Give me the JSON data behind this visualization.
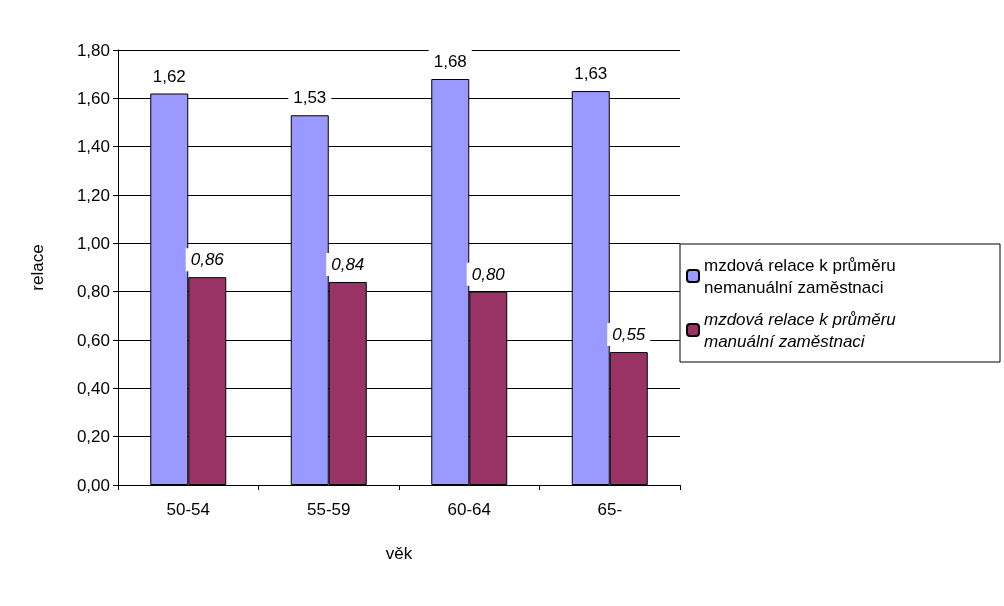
{
  "chart_data": {
    "type": "bar",
    "xlabel": "věk",
    "ylabel": "relace",
    "categories": [
      "50-54",
      "55-59",
      "60-64",
      "65-"
    ],
    "series": [
      {
        "name": "mzdová relace k průměru nemanuální zaměstnaci",
        "color": "#9999ff",
        "values": [
          1.62,
          1.53,
          1.68,
          1.63
        ],
        "value_labels": [
          "1,62",
          "1,53",
          "1,68",
          "1,63"
        ]
      },
      {
        "name": "mzdová relace k průměru manuální zaměstnaci",
        "color": "#993366",
        "values": [
          0.86,
          0.84,
          0.8,
          0.55
        ],
        "value_labels": [
          "0,86",
          "0,84",
          "0,80",
          "0,55"
        ]
      }
    ],
    "ylim": [
      0,
      1.8
    ],
    "yticks": [
      {
        "value": 0,
        "label": "0,00"
      },
      {
        "value": 0.2,
        "label": "0,20"
      },
      {
        "value": 0.4,
        "label": "0,40"
      },
      {
        "value": 0.6,
        "label": "0,60"
      },
      {
        "value": 0.8,
        "label": "0,80"
      },
      {
        "value": 1.0,
        "label": "1,00"
      },
      {
        "value": 1.2,
        "label": "1,20"
      },
      {
        "value": 1.4,
        "label": "1,40"
      },
      {
        "value": 1.6,
        "label": "1,60"
      },
      {
        "value": 1.8,
        "label": "1,80"
      }
    ],
    "grid": "y",
    "legend": "right"
  }
}
